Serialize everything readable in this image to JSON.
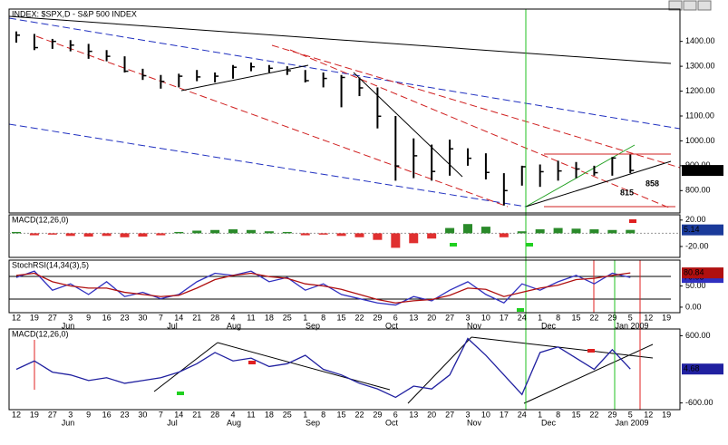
{
  "x_axis": {
    "categories": [
      "12",
      "19",
      "27",
      "3",
      "9",
      "16",
      "23",
      "30",
      "7",
      "14",
      "21",
      "28",
      "4",
      "11",
      "18",
      "25",
      "1",
      "8",
      "15",
      "22",
      "29",
      "6",
      "13",
      "20",
      "27",
      "3",
      "10",
      "17",
      "24",
      "1",
      "8",
      "15",
      "22",
      "29",
      "5",
      "12",
      "19"
    ],
    "months": [
      "Jun",
      "Jul",
      "Aug",
      "Sep",
      "Oct",
      "Nov",
      "Dec",
      "Jan 2009"
    ]
  },
  "chart_data": [
    {
      "type": "ohlc",
      "title": "INDEX: $SPX,D - S&P 500 INDEX",
      "color": "#000000",
      "series": {
        "high": [
          1440,
          1430,
          1410,
          1405,
          1390,
          1365,
          1340,
          1290,
          1265,
          1270,
          1285,
          1275,
          1305,
          1315,
          1305,
          1300,
          1285,
          1275,
          1265,
          1255,
          1215,
          1100,
          1010,
          985,
          1005,
          970,
          950,
          870,
          900,
          905,
          920,
          915,
          900,
          935,
          945,
          null,
          null
        ],
        "low": [
          1395,
          1365,
          1370,
          1360,
          1330,
          1320,
          1275,
          1245,
          1210,
          1215,
          1240,
          1235,
          1250,
          1280,
          1275,
          1265,
          1235,
          1215,
          1135,
          1180,
          1050,
          840,
          850,
          840,
          860,
          900,
          845,
          740,
          820,
          815,
          840,
          850,
          860,
          860,
          870,
          null,
          null
        ],
        "close": [
          1425,
          1375,
          1400,
          1385,
          1360,
          1340,
          1280,
          1262,
          1239,
          1260,
          1257,
          1260,
          1296,
          1298,
          1292,
          1282,
          1242,
          1251,
          1255,
          1213,
          1099,
          899,
          940,
          877,
          968,
          930,
          873,
          800,
          896,
          876,
          879,
          887,
          872,
          931,
          880.95,
          null,
          null
        ]
      },
      "annotations": [
        "858",
        "815"
      ],
      "ylim": [
        710,
        1530
      ],
      "yticks": [
        {
          "value": 1400,
          "label": "1400.00"
        },
        {
          "value": 1300,
          "label": "1300.00"
        },
        {
          "value": 1200,
          "label": "1200.00"
        },
        {
          "value": 1100,
          "label": "1100.00"
        },
        {
          "value": 1000,
          "label": "1000.00"
        },
        {
          "value": 900,
          "label": "900.00"
        },
        {
          "value": 800,
          "label": "800.00"
        }
      ]
    },
    {
      "type": "bar",
      "title": "MACD(12,26,0)",
      "pos_color": "#2a8a2a",
      "neg_color": "#e03030",
      "label_color": "#1a3a9a",
      "values": [
        2,
        -3,
        -2,
        -4,
        -5,
        -4,
        -6,
        -5,
        -3,
        2,
        4,
        5,
        6,
        5,
        3,
        2,
        -3,
        -2,
        -4,
        -6,
        -10,
        -22,
        -15,
        -8,
        8,
        14,
        10,
        -6,
        3,
        6,
        8,
        7,
        6,
        5,
        5.14,
        null,
        null
      ],
      "ylim": [
        -36.5,
        28
      ],
      "yticks": [
        {
          "value": 20,
          "label": "20.00"
        },
        {
          "value": -20,
          "label": "-20.00"
        }
      ]
    },
    {
      "type": "line",
      "title": "StochRSI(14,34(3),5)",
      "series": [
        {
          "name": "Stoch RSI",
          "color": "#3030c0",
          "values": [
            70,
            85,
            40,
            55,
            30,
            60,
            25,
            35,
            20,
            30,
            60,
            80,
            75,
            85,
            60,
            70,
            40,
            55,
            30,
            20,
            10,
            5,
            25,
            15,
            40,
            60,
            30,
            10,
            55,
            40,
            60,
            75,
            55,
            80,
            70.08,
            null,
            null
          ]
        },
        {
          "name": "Signal",
          "color": "#b01010",
          "values": [
            75,
            80,
            60,
            50,
            45,
            45,
            35,
            30,
            25,
            28,
            45,
            65,
            75,
            80,
            72,
            68,
            55,
            50,
            42,
            30,
            18,
            10,
            15,
            18,
            28,
            45,
            42,
            25,
            35,
            45,
            52,
            65,
            68,
            75,
            80.84,
            null,
            null
          ]
        }
      ],
      "ylim": [
        -13,
        111
      ],
      "yticks": [
        {
          "value": 50,
          "label": "50.00"
        },
        {
          "value": 0,
          "label": "0.00"
        }
      ]
    },
    {
      "type": "line",
      "title": "MACD(12,26,0)",
      "series": [
        {
          "name": "MACD",
          "color": "#2020a0",
          "values": [
            0,
            150,
            -50,
            -100,
            -200,
            -150,
            -250,
            -200,
            -150,
            -50,
            100,
            300,
            150,
            200,
            50,
            100,
            250,
            0,
            -100,
            -250,
            -350,
            -500,
            -300,
            -350,
            -100,
            550,
            250,
            -100,
            -450,
            300,
            400,
            200,
            0,
            350,
            4.68,
            null,
            null
          ]
        }
      ],
      "ylim": [
        -720,
        720
      ],
      "yticks": [
        {
          "value": 600,
          "label": "600.00"
        },
        {
          "value": -600,
          "label": "-600.00"
        }
      ]
    }
  ]
}
